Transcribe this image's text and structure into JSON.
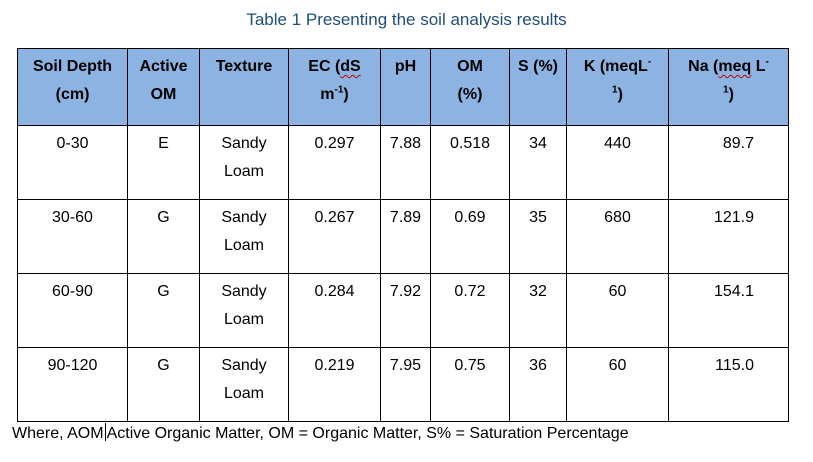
{
  "caption": "Table 1 Presenting the soil analysis results",
  "headers": {
    "depth": [
      "Soil Depth",
      "(cm)"
    ],
    "active": [
      "Active",
      "OM"
    ],
    "texture": "Texture",
    "ec": {
      "l1": "EC (",
      "l1b": "dS",
      "l2": "m",
      "sup": "-1",
      "l2b": ")"
    },
    "ph": "pH",
    "om": [
      "OM",
      "(%)"
    ],
    "s": "S (%)",
    "k": {
      "l1": "K (meqL",
      "sup1": "-",
      "sup2": "1",
      "l2b": ")"
    },
    "na": {
      "l1a": "Na (",
      "l1b": "meq",
      "l1c": " L",
      "sup1": "-",
      "sup2": "1",
      "l2b": ")"
    }
  },
  "rows": [
    {
      "depth": "0-30",
      "active": "E",
      "texture": [
        "Sandy",
        "Loam"
      ],
      "ec": "0.297",
      "ph": "7.88",
      "om": "0.518",
      "s": "34",
      "k": "440",
      "na": "89.7"
    },
    {
      "depth": "30-60",
      "active": "G",
      "texture": [
        "Sandy",
        "Loam"
      ],
      "ec": "0.267",
      "ph": "7.89",
      "om": "0.69",
      "s": "35",
      "k": "680",
      "na": "121.9"
    },
    {
      "depth": "60-90",
      "active": "G",
      "texture": [
        "Sandy",
        "Loam"
      ],
      "ec": "0.284",
      "ph": "7.92",
      "om": "0.72",
      "s": "32",
      "k": "60",
      "na": "154.1"
    },
    {
      "depth": "90-120",
      "active": "G",
      "texture": [
        "Sandy",
        "Loam"
      ],
      "ec": "0.219",
      "ph": "7.95",
      "om": "0.75",
      "s": "36",
      "k": "60",
      "na": "115.0"
    }
  ],
  "footnote": {
    "part1": "Where, AOM",
    "part2": "Active Organic Matter, OM = Organic Matter, S% = Saturation Percentage"
  }
}
